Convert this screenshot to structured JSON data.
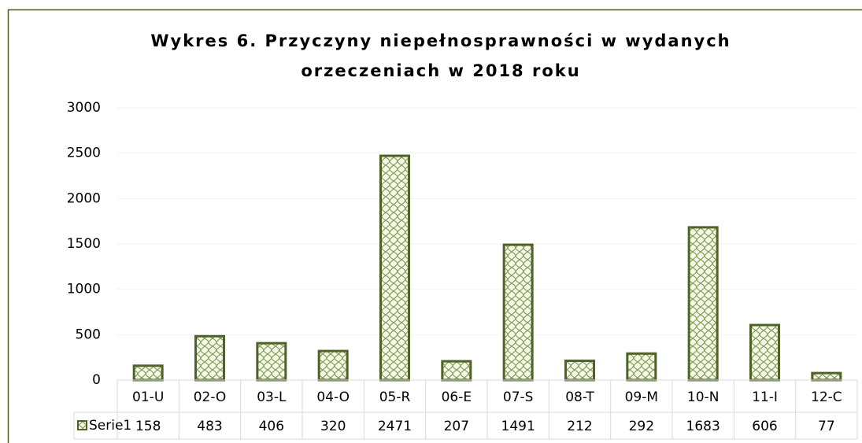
{
  "chart_data": {
    "type": "bar",
    "title": "Wykres 6. Przyczyny niepełnosprawności w wydanych",
    "subtitle": "orzeczeniach w 2018 roku",
    "categories": [
      "01-U",
      "02-O",
      "03-L",
      "04-O",
      "05-R",
      "06-E",
      "07-S",
      "08-T",
      "09-M",
      "10-N",
      "11-I",
      "12-C"
    ],
    "series": [
      {
        "name": "Serie1",
        "color": "#4f6228",
        "values": [
          158,
          483,
          406,
          320,
          2471,
          207,
          1491,
          212,
          292,
          1683,
          606,
          77
        ]
      }
    ],
    "ylim": [
      0,
      3000
    ],
    "yticks": [
      0,
      500,
      1000,
      1500,
      2000,
      2500,
      3000
    ],
    "grid": true,
    "data_table": true
  }
}
